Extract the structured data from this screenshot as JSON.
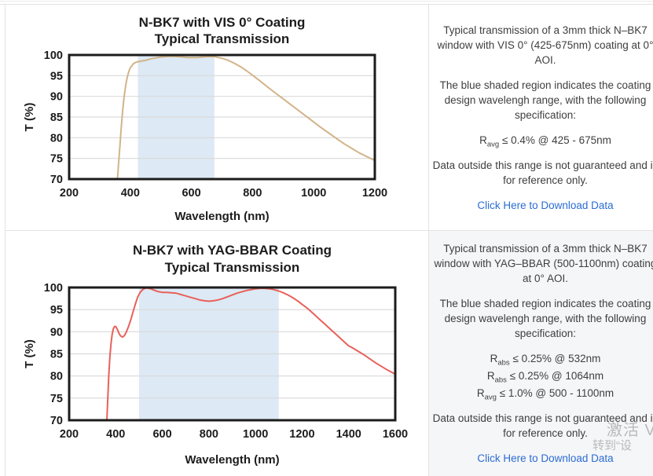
{
  "colors": {
    "link": "#2b6cd4",
    "curve_vis": "#d2b488",
    "curve_yag": "#e8615a",
    "shaded_region": "#dde9f4",
    "gridline": "#d9d9d9",
    "axis_text": "#1c1c1c",
    "row2_cell_bg": "#f5f6f7",
    "watermark": "#b7babd"
  },
  "rows": [
    {
      "description": {
        "para1": "Typical transmission of a 3mm thick N–BK7 window with VIS 0° (425-675nm) coating at 0° AOI.",
        "para2": "The blue shaded region indicates the coating design wavelengh range, with the following specification:",
        "specs": [
          {
            "base": "R",
            "sub": "avg",
            "rest": " ≤ 0.4% @ 425 - 675nm"
          }
        ],
        "para3": "Data outside this range is not guaranteed and is for reference only.",
        "link": "Click Here to Download Data"
      }
    },
    {
      "description": {
        "para1": "Typical transmission of a 3mm thick N–BK7 window with YAG–BBAR (500-1100nm) coating at 0° AOI.",
        "para2": "The blue shaded region indicates the coating design wavelengh range, with the following specification:",
        "specs": [
          {
            "base": "R",
            "sub": "abs",
            "rest": " ≤ 0.25% @ 532nm"
          },
          {
            "base": "R",
            "sub": "abs",
            "rest": " ≤ 0.25% @ 1064nm"
          },
          {
            "base": "R",
            "sub": "avg",
            "rest": " ≤ 1.0% @ 500 - 1100nm"
          }
        ],
        "para3": "Data outside this range is not guaranteed and is for reference only.",
        "link": "Click Here to Download Data"
      }
    }
  ],
  "watermark": {
    "line1": "激活 V",
    "line2": "转到“设"
  },
  "chart_data": [
    {
      "type": "line",
      "title": "N-BK7 with VIS 0° Coating",
      "subtitle": "Typical Transmission",
      "xlabel": "Wavelength (nm)",
      "ylabel": "T (%)",
      "xlim": [
        200,
        1200
      ],
      "ylim": [
        70,
        100
      ],
      "xticks": [
        200,
        400,
        600,
        800,
        1000,
        1200
      ],
      "yticks": [
        70,
        75,
        80,
        85,
        90,
        95,
        100
      ],
      "grid": "horizontal",
      "legend": "none",
      "shaded_region": {
        "x0": 425,
        "x1": 675,
        "color": "#dde9f4",
        "label": "coating design wavelength range 425-675nm"
      },
      "series": [
        {
          "name": "N-BK7 VIS 0° coating transmission",
          "color": "#d2b488",
          "x": [
            358,
            362,
            366,
            370,
            375,
            380,
            385,
            390,
            395,
            400,
            410,
            420,
            435,
            450,
            470,
            500,
            530,
            560,
            590,
            620,
            650,
            675,
            700,
            720,
            740,
            760,
            780,
            800,
            825,
            850,
            875,
            900,
            925,
            950,
            975,
            1000,
            1025,
            1050,
            1075,
            1100,
            1125,
            1150,
            1175,
            1200
          ],
          "y": [
            70,
            74,
            78,
            82,
            86.5,
            90,
            92.7,
            94.6,
            96,
            96.9,
            97.9,
            98.3,
            98.5,
            98.7,
            99.1,
            99.5,
            99.7,
            99.6,
            99.4,
            99.4,
            99.6,
            99.6,
            99.2,
            98.7,
            98.0,
            97.2,
            96.2,
            95.1,
            93.7,
            92.2,
            90.8,
            89.4,
            88.0,
            86.6,
            85.2,
            83.8,
            82.4,
            81.1,
            79.8,
            78.5,
            77.4,
            76.3,
            75.4,
            74.5
          ]
        }
      ]
    },
    {
      "type": "line",
      "title": "N-BK7 with YAG-BBAR Coating",
      "subtitle": "Typical Transmission",
      "xlabel": "Wavelength (nm)",
      "ylabel": "T (%)",
      "xlim": [
        200,
        1600
      ],
      "ylim": [
        70,
        100
      ],
      "xticks": [
        200,
        400,
        600,
        800,
        1000,
        1200,
        1400,
        1600
      ],
      "yticks": [
        70,
        75,
        80,
        85,
        90,
        95,
        100
      ],
      "grid": "horizontal",
      "legend": "none",
      "shaded_region": {
        "x0": 500,
        "x1": 1100,
        "color": "#dde9f4",
        "label": "coating design wavelength range 500-1100nm"
      },
      "series": [
        {
          "name": "N-BK7 YAG-BBAR coating transmission",
          "color": "#e8615a",
          "x": [
            362,
            366,
            370,
            375,
            380,
            385,
            390,
            395,
            400,
            408,
            415,
            422,
            430,
            438,
            446,
            455,
            465,
            475,
            485,
            495,
            505,
            515,
            525,
            535,
            550,
            565,
            580,
            600,
            620,
            640,
            660,
            680,
            700,
            720,
            740,
            760,
            780,
            800,
            820,
            840,
            860,
            880,
            900,
            920,
            940,
            960,
            980,
            1000,
            1020,
            1040,
            1060,
            1080,
            1100,
            1120,
            1140,
            1160,
            1180,
            1200,
            1225,
            1250,
            1275,
            1300,
            1325,
            1350,
            1375,
            1400,
            1415,
            1440,
            1465,
            1490,
            1515,
            1540,
            1565,
            1600
          ],
          "y": [
            70,
            75,
            80,
            84.5,
            87.5,
            89.5,
            90.7,
            91.2,
            91.2,
            90.4,
            89.5,
            89.0,
            88.8,
            89.2,
            90.0,
            91.2,
            92.8,
            94.6,
            96.4,
            97.9,
            98.9,
            99.5,
            99.8,
            99.9,
            99.7,
            99.4,
            99.1,
            98.9,
            98.9,
            98.8,
            98.7,
            98.4,
            98.1,
            97.8,
            97.5,
            97.2,
            97.0,
            96.9,
            97.0,
            97.2,
            97.5,
            97.9,
            98.3,
            98.7,
            99.0,
            99.3,
            99.5,
            99.7,
            99.8,
            99.8,
            99.7,
            99.5,
            99.2,
            98.8,
            98.3,
            97.7,
            97.0,
            96.2,
            95.2,
            94.0,
            92.8,
            91.6,
            90.4,
            89.2,
            88.0,
            86.8,
            86.4,
            85.6,
            84.8,
            83.9,
            83.0,
            82.2,
            81.4,
            80.4
          ]
        }
      ]
    }
  ]
}
